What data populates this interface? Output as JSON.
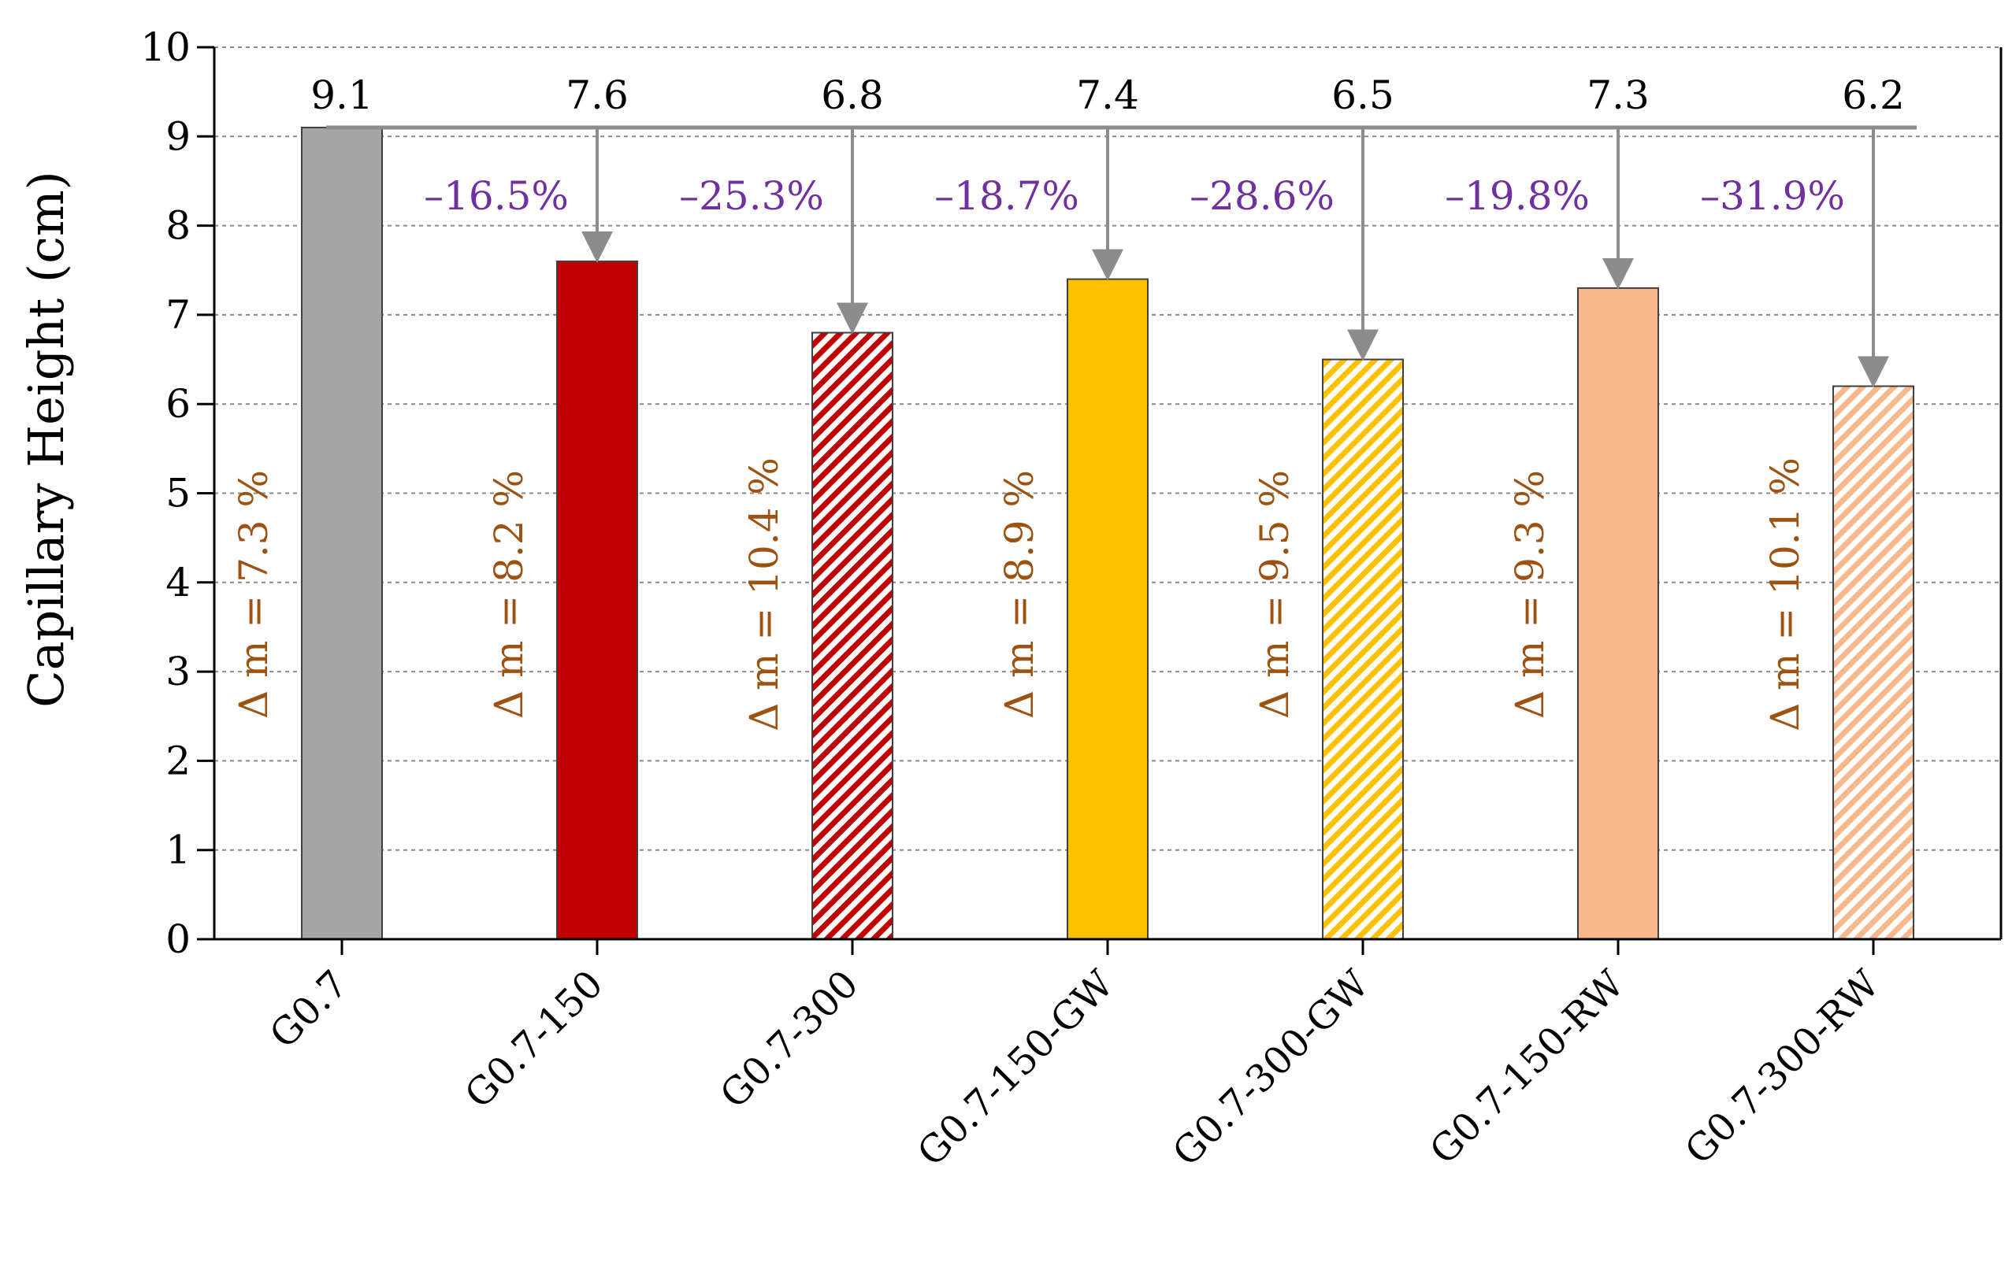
{
  "chart_data": {
    "type": "bar",
    "title": "",
    "xlabel": "",
    "ylabel": "Capillary Height (cm)",
    "ylim": [
      0,
      10
    ],
    "yticks": [
      "0",
      "1",
      "2",
      "3",
      "4",
      "5",
      "6",
      "7",
      "8",
      "9",
      "10"
    ],
    "grid": true,
    "categories": [
      "G0.7",
      "G0.7-150",
      "G0.7-300",
      "G0.7-150-GW",
      "G0.7-300-GW",
      "G0.7-150-RW",
      "G0.7-300-RW"
    ],
    "values": [
      9.1,
      7.6,
      6.8,
      7.4,
      6.5,
      7.3,
      6.2
    ],
    "value_labels": [
      "9.1",
      "7.6",
      "6.8",
      "7.4",
      "6.5",
      "7.3",
      "6.2"
    ],
    "reduction_labels": [
      "",
      "–16.5%",
      "–25.3%",
      "–18.7%",
      "–28.6%",
      "–19.8%",
      "–31.9%"
    ],
    "mass_change_labels": [
      "Δ m = 7.3 %",
      "Δ m = 8.2 %",
      "Δ m = 10.4 %",
      "Δ m = 8.9 %",
      "Δ m = 9.5 %",
      "Δ m = 9.3 %",
      "Δ m = 10.1 %"
    ],
    "bar_colors": [
      "#a6a6a6",
      "#c00000",
      "#c00000",
      "#ffc000",
      "#ffc000",
      "#f8b88b",
      "#f8b88b"
    ],
    "bar_hatched": [
      false,
      false,
      true,
      false,
      true,
      false,
      true
    ],
    "reference_value": 9.1,
    "colors": {
      "reduction_text": "#7030a0",
      "mass_text": "#9c5211",
      "arrow": "#8c8c8c"
    }
  }
}
